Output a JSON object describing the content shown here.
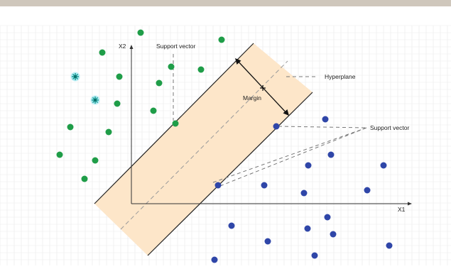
{
  "diagram": {
    "axes": {
      "x_label": "X1",
      "y_label": "X2"
    },
    "labels": {
      "support_vector_top": "Support vector",
      "support_vector_right": "Support vector",
      "hyperplane": "Hyperplane",
      "margin": "Margin"
    },
    "colors": {
      "top_bar": "#cfc7bc",
      "grid": "#e9e9e9",
      "margin_fill": "#fde6c9",
      "line": "#222222",
      "dashed": "#8a8a8a",
      "class_a": "#1f9d48",
      "class_b": "#2f46a8",
      "special": "#1fa09a",
      "special_halo": "#9be6f0"
    },
    "classes": [
      {
        "name": "class-a",
        "color_key": "class_a",
        "count": 17
      },
      {
        "name": "class-b",
        "color_key": "class_b",
        "count": 18
      }
    ],
    "special_points": {
      "count": 2,
      "icon": "asterisk-icon"
    }
  }
}
